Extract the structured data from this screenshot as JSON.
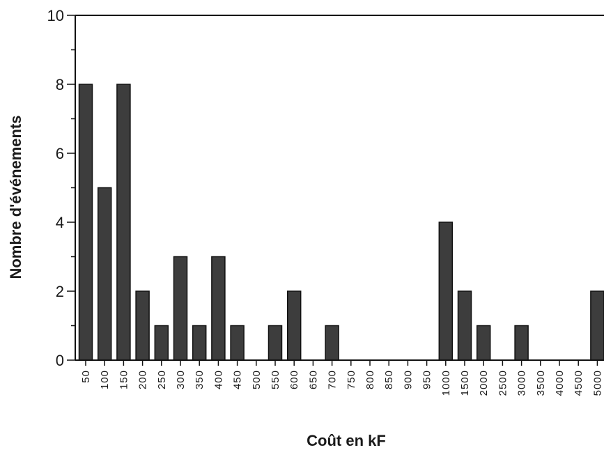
{
  "chart_data": {
    "type": "bar",
    "title": "",
    "xlabel": "Coût en kF",
    "ylabel": "Nombre d'événements",
    "ylim": [
      0,
      10
    ],
    "yticks": [
      "0",
      "2",
      "4",
      "6",
      "8",
      "10"
    ],
    "grid": false,
    "categories": [
      "50",
      "100",
      "150",
      "200",
      "250",
      "300",
      "350",
      "400",
      "450",
      "500",
      "550",
      "600",
      "650",
      "700",
      "750",
      "800",
      "850",
      "900",
      "950",
      "1000",
      "1500",
      "2000",
      "2500",
      "3000",
      "3500",
      "4000",
      "4500",
      "5000"
    ],
    "series": [
      {
        "values": [
          8,
          5,
          8,
          2,
          1,
          3,
          1,
          3,
          1,
          0,
          1,
          2,
          0,
          1,
          0,
          0,
          0,
          0,
          0,
          4,
          2,
          1,
          0,
          1,
          0,
          0,
          0,
          2
        ]
      }
    ],
    "colors": {
      "bar": "#3d3d3d",
      "axis": "#111111"
    }
  }
}
